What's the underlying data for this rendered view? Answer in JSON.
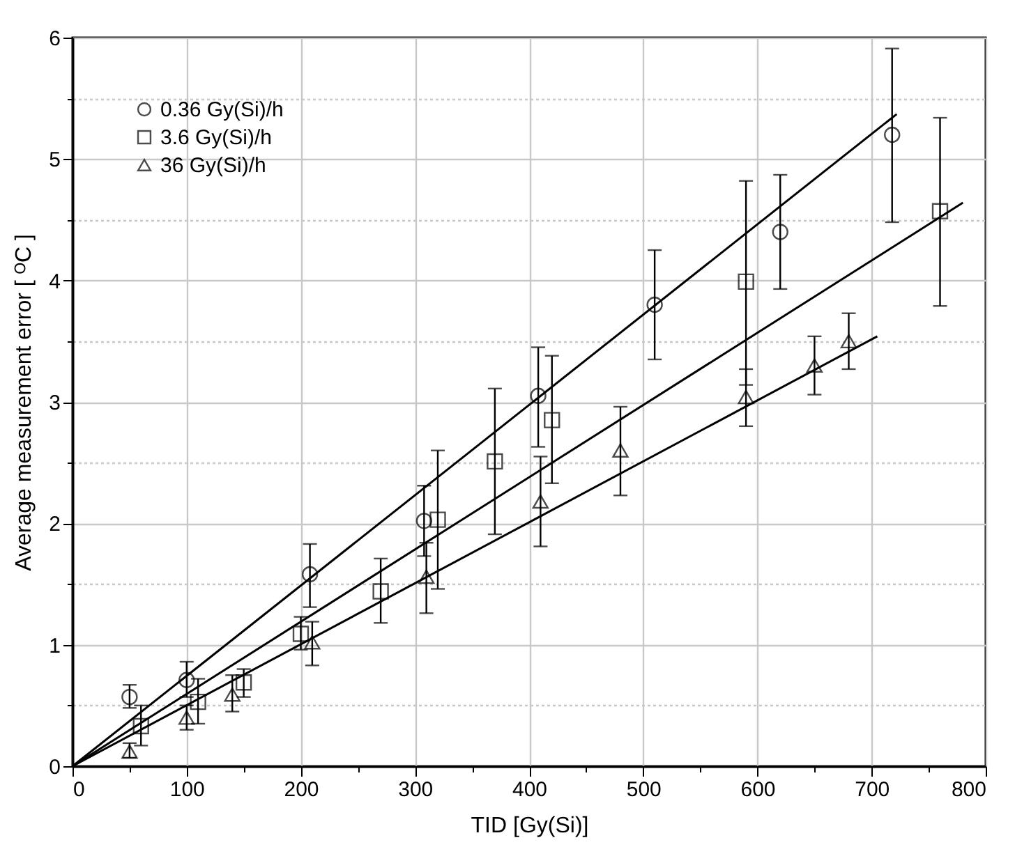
{
  "chart_data": {
    "type": "scatter",
    "xlabel": "TID [Gy(Si)]",
    "ylabel": "Average measurement error [ ᴼC ]",
    "xlim": [
      0,
      800
    ],
    "ylim": [
      0,
      6
    ],
    "xticks": [
      0,
      {
        "value": 50,
        "label": null
      },
      100,
      {
        "value": 150,
        "label": null
      },
      200,
      {
        "value": 250,
        "label": null
      },
      300,
      {
        "value": 350,
        "label": null
      },
      400,
      {
        "value": 450,
        "label": null
      },
      500,
      {
        "value": 550,
        "label": null
      },
      600,
      {
        "value": 650,
        "label": null
      },
      700,
      {
        "value": 750,
        "label": null
      },
      800
    ],
    "yticks": [
      0,
      {
        "value": 0.5,
        "label": null
      },
      1,
      {
        "value": 1.5,
        "label": null
      },
      2,
      {
        "value": 2.5,
        "label": null
      },
      3,
      {
        "value": 3.5,
        "label": null
      },
      4,
      {
        "value": 4.5,
        "label": null
      },
      5,
      {
        "value": 5.5,
        "label": null
      },
      6
    ],
    "grid": true,
    "legend": "top left",
    "series": [
      {
        "name": "0.36 Gy(Si)/h",
        "color": "#000000",
        "marker": "circle",
        "x": [
          50,
          100,
          208,
          308,
          408,
          510,
          620,
          718
        ],
        "values": [
          0.57,
          0.71,
          1.58,
          2.02,
          3.05,
          3.8,
          4.4,
          5.2
        ],
        "errors": [
          [
            0.48,
            0.67
          ],
          [
            0.57,
            0.86
          ],
          [
            1.31,
            1.83
          ],
          [
            1.73,
            2.31
          ],
          [
            2.63,
            3.45
          ],
          [
            3.35,
            4.25
          ],
          [
            3.93,
            4.87
          ],
          [
            4.48,
            5.91
          ]
        ]
      },
      {
        "name": "3.6 Gy(Si)/h",
        "color": "#000000",
        "marker": "square",
        "x": [
          60,
          110,
          150,
          200,
          270,
          320,
          370,
          420,
          590,
          760
        ],
        "values": [
          0.33,
          0.53,
          0.69,
          1.09,
          1.44,
          2.03,
          2.51,
          2.85,
          3.99,
          4.57
        ],
        "errors": [
          [
            0.17,
            0.5
          ],
          [
            0.35,
            0.72
          ],
          [
            0.57,
            0.8
          ],
          [
            0.96,
            1.23
          ],
          [
            1.18,
            1.71
          ],
          [
            1.46,
            2.6
          ],
          [
            1.91,
            3.11
          ],
          [
            2.33,
            3.38
          ],
          [
            3.14,
            4.82
          ],
          [
            3.79,
            5.34
          ]
        ]
      },
      {
        "name": "36 Gy(Si)/h",
        "color": "#000000",
        "marker": "triangle",
        "x": [
          50,
          100,
          140,
          210,
          310,
          410,
          480,
          590,
          650,
          680
        ],
        "values": [
          0.12,
          0.4,
          0.59,
          1.02,
          1.56,
          2.18,
          2.6,
          3.04,
          3.3,
          3.5
        ],
        "errors": [
          [
            0.07,
            0.19
          ],
          [
            0.3,
            0.5
          ],
          [
            0.45,
            0.75
          ],
          [
            0.83,
            1.19
          ],
          [
            1.26,
            1.84
          ],
          [
            1.81,
            2.55
          ],
          [
            2.23,
            2.96
          ],
          [
            2.8,
            3.27
          ],
          [
            3.06,
            3.54
          ],
          [
            3.27,
            3.73
          ]
        ]
      },
      {
        "type": "line",
        "color": "#000000",
        "marker": "none",
        "x": [
          0,
          722
        ],
        "values": [
          0,
          5.37
        ]
      },
      {
        "type": "line",
        "color": "#000000",
        "marker": "none",
        "x": [
          0,
          780
        ],
        "values": [
          0,
          4.64
        ]
      },
      {
        "type": "line",
        "color": "#000000",
        "marker": "none",
        "x": [
          0,
          705
        ],
        "values": [
          0,
          3.54
        ]
      }
    ]
  }
}
